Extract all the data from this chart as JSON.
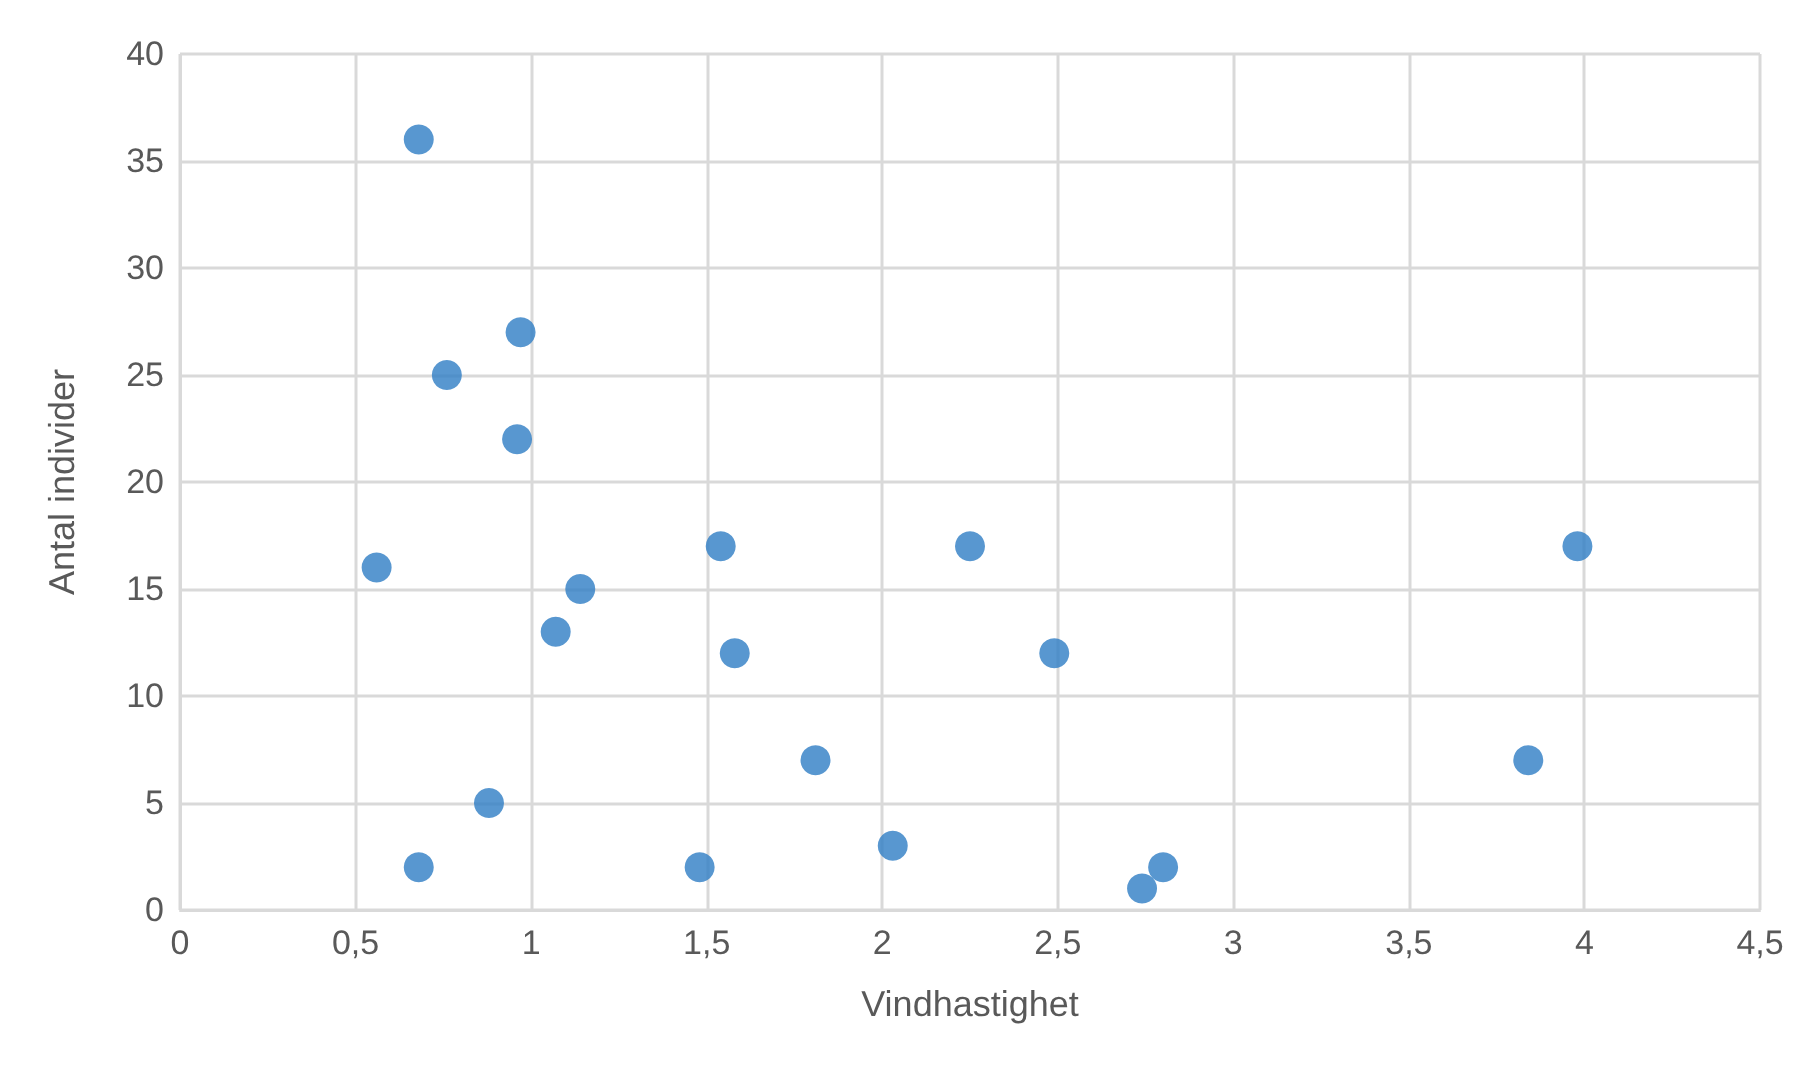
{
  "chart_data": {
    "type": "scatter",
    "xlabel": "Vindhastighet",
    "ylabel": "Antal individer",
    "x": [
      0.68,
      0.76,
      0.97,
      0.96,
      0.56,
      1.14,
      1.07,
      1.54,
      1.58,
      2.25,
      2.49,
      1.81,
      2.03,
      1.48,
      0.88,
      0.68,
      2.74,
      2.8,
      3.84,
      3.98
    ],
    "series": [
      {
        "color": "#2e7dc4",
        "values": [
          36,
          25,
          27,
          22,
          16,
          15,
          13,
          17,
          12,
          17,
          12,
          7,
          3,
          2,
          5,
          2,
          1,
          2,
          7,
          17
        ]
      }
    ],
    "xlim": [
      0,
      4.5
    ],
    "xticks": [
      0,
      {
        "value": 0.5,
        "label": "0,5"
      },
      1,
      {
        "value": 1.5,
        "label": "1,5"
      },
      2,
      {
        "value": 2.5,
        "label": "2,5"
      },
      3,
      {
        "value": 3.5,
        "label": "3,5"
      },
      4,
      {
        "value": 4.5,
        "label": "4,5"
      }
    ],
    "ylim": [
      0,
      40
    ],
    "yticks": [
      0,
      5,
      10,
      15,
      20,
      25,
      30,
      35,
      40
    ],
    "grid": true,
    "marker": "circle"
  }
}
